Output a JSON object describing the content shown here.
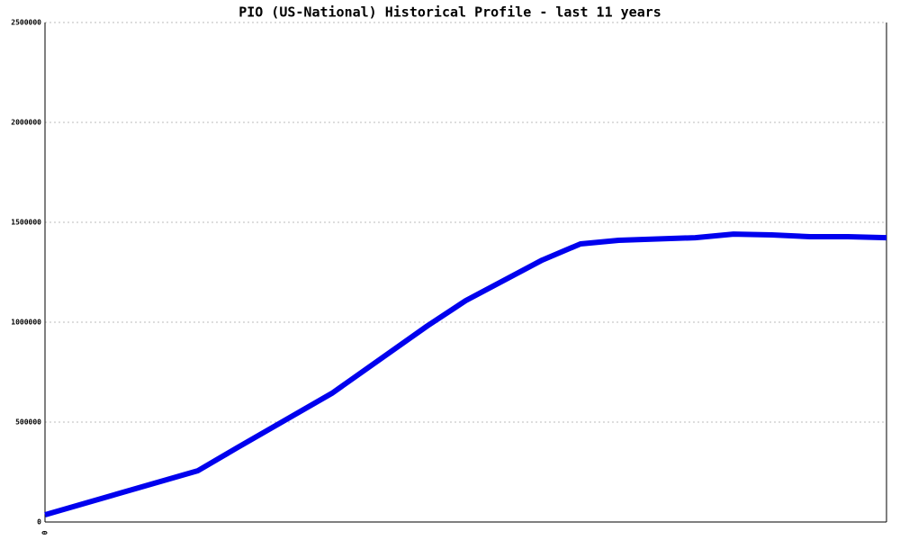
{
  "chart_data": {
    "type": "line",
    "title": "PIO (US-National) Historical Profile - last 11 years",
    "x": [
      0,
      2,
      2.5,
      3.75,
      5,
      5.5,
      6.5,
      7,
      7.5,
      8.5,
      9,
      9.5,
      10,
      10.5,
      11
    ],
    "series": [
      {
        "color": "#0000ee",
        "values": [
          36000,
          257000,
          369000,
          644000,
          982000,
          1108000,
          1311000,
          1392000,
          1410000,
          1423000,
          1441000,
          1437000,
          1428000,
          1428000,
          1423000
        ]
      }
    ],
    "xlim": [
      0,
      11
    ],
    "xticks": [
      0
    ],
    "ylim": [
      0,
      2500000
    ],
    "yticks": [
      0,
      500000,
      1000000,
      1500000,
      2000000,
      2500000
    ],
    "grid": true
  }
}
